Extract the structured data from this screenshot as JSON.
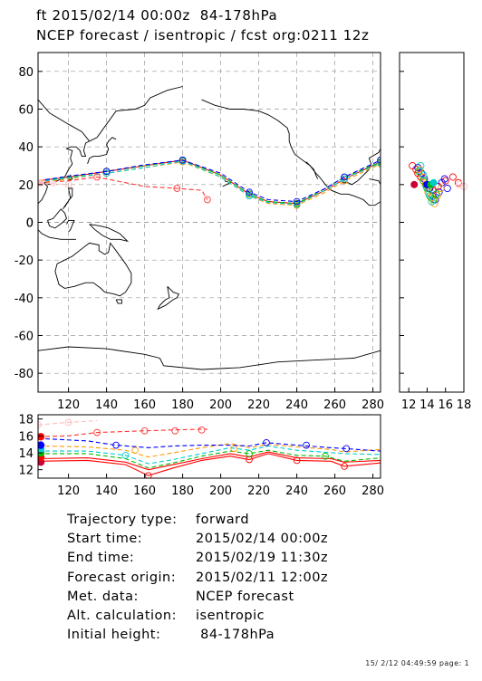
{
  "header": {
    "line1": "ft 2015/02/14 00:00z  84-178hPa",
    "line2": "NCEP forecast / isentropic / fcst org:0211 12z"
  },
  "info": [
    {
      "key": "Trajectory type:",
      "value": "forward"
    },
    {
      "key": "Start time:",
      "value": "2015/02/14 00:00z"
    },
    {
      "key": "End time:",
      "value": "2015/02/19 11:30z"
    },
    {
      "key": "Forecast origin:",
      "value": "2015/02/11 12:00z"
    },
    {
      "key": "Met. data:",
      "value": "NCEP forecast"
    },
    {
      "key": "Alt. calculation:",
      "value": "isentropic"
    },
    {
      "key": "Initial height:",
      "value": " 84-178hPa"
    }
  ],
  "footer": "15/ 2/12 04:49:59 page: 1",
  "chart_data": [
    {
      "type": "line",
      "panel": "map",
      "xlim": [
        104,
        284
      ],
      "ylim": [
        -90,
        90
      ],
      "x_ticks": [
        "120",
        "140",
        "160",
        "180",
        "200",
        "220",
        "240",
        "260",
        "280"
      ],
      "y_ticks": [
        "80",
        "60",
        "40",
        "20",
        "0",
        "-20",
        "-40",
        "-60",
        "-80"
      ],
      "grid": true,
      "series": [
        {
          "color": "#ff0000",
          "style": "solid",
          "points": [
            [
              104,
              22
            ],
            [
              120,
              24
            ],
            [
              140,
              27
            ],
            [
              160,
              30
            ],
            [
              180,
              33
            ],
            [
              200,
              25
            ],
            [
              215,
              15
            ],
            [
              225,
              11
            ],
            [
              240,
              10
            ],
            [
              255,
              17
            ],
            [
              265,
              23
            ],
            [
              284,
              32
            ]
          ]
        },
        {
          "color": "#ff9900",
          "style": "dashed",
          "points": [
            [
              104,
              21
            ],
            [
              120,
              23
            ],
            [
              140,
              26
            ],
            [
              160,
              29
            ],
            [
              180,
              32
            ],
            [
              200,
              24
            ],
            [
              215,
              14
            ],
            [
              225,
              10
            ],
            [
              240,
              9
            ],
            [
              255,
              16
            ],
            [
              265,
              22
            ],
            [
              284,
              31
            ]
          ]
        },
        {
          "color": "#00bb00",
          "style": "dashed",
          "points": [
            [
              104,
              22
            ],
            [
              120,
              24
            ],
            [
              140,
              27
            ],
            [
              160,
              30
            ],
            [
              180,
              33
            ],
            [
              200,
              25
            ],
            [
              215,
              15
            ],
            [
              225,
              11
            ],
            [
              240,
              10
            ],
            [
              255,
              18
            ],
            [
              265,
              24
            ],
            [
              284,
              32
            ]
          ]
        },
        {
          "color": "#00cccc",
          "style": "dashed",
          "points": [
            [
              104,
              21.5
            ],
            [
              120,
              23.5
            ],
            [
              140,
              26
            ],
            [
              160,
              29
            ],
            [
              180,
              32.5
            ],
            [
              200,
              24
            ],
            [
              215,
              14
            ],
            [
              225,
              10.5
            ],
            [
              240,
              9.5
            ],
            [
              255,
              17
            ],
            [
              265,
              23
            ],
            [
              284,
              31.5
            ]
          ]
        },
        {
          "color": "#0000ff",
          "style": "dashed",
          "points": [
            [
              104,
              22
            ],
            [
              120,
              24.5
            ],
            [
              140,
              27
            ],
            [
              160,
              30.5
            ],
            [
              180,
              33
            ],
            [
              200,
              26
            ],
            [
              215,
              16
            ],
            [
              225,
              12
            ],
            [
              240,
              11
            ],
            [
              255,
              18
            ],
            [
              265,
              24
            ],
            [
              284,
              33
            ]
          ]
        },
        {
          "color": "#ff3333",
          "style": "dashed",
          "points": [
            [
              104,
              21
            ],
            [
              120,
              22
            ],
            [
              135,
              24
            ],
            [
              160,
              19
            ],
            [
              177,
              18
            ],
            [
              190,
              17
            ],
            [
              193,
              12
            ]
          ]
        },
        {
          "color": "#ffbbbb",
          "style": "dashed",
          "points": [
            [
              104,
              21
            ],
            [
              112,
              20.5
            ],
            [
              120,
              20
            ]
          ]
        }
      ]
    },
    {
      "type": "scatter",
      "panel": "side",
      "xlim": [
        11,
        18
      ],
      "ylim": [
        -90,
        90
      ],
      "x_ticks": [
        "12",
        "14",
        "16",
        "18"
      ],
      "series": [
        {
          "color": "#ff0000",
          "points": [
            [
              12.4,
              30
            ],
            [
              12.8,
              28
            ],
            [
              13.0,
              26
            ],
            [
              13.3,
              24
            ],
            [
              13.6,
              22
            ],
            [
              13.9,
              20
            ],
            [
              14.2,
              18
            ],
            [
              14.6,
              17
            ],
            [
              15.2,
              19
            ],
            [
              16.0,
              22
            ],
            [
              16.8,
              24
            ],
            [
              17.4,
              21
            ]
          ]
        },
        {
          "color": "#0000ff",
          "points": [
            [
              13.0,
              29
            ],
            [
              13.4,
              26
            ],
            [
              13.7,
              23
            ],
            [
              14.0,
              20
            ],
            [
              14.3,
              18
            ],
            [
              14.6,
              14
            ],
            [
              14.9,
              12
            ],
            [
              15.3,
              16
            ],
            [
              15.6,
              21
            ],
            [
              15.9,
              23
            ],
            [
              16.2,
              18
            ]
          ]
        },
        {
          "color": "#ff9900",
          "points": [
            [
              13.2,
              28
            ],
            [
              13.5,
              24
            ],
            [
              13.8,
              20
            ],
            [
              14.1,
              16
            ],
            [
              14.4,
              13
            ],
            [
              14.8,
              10
            ],
            [
              15.1,
              14
            ],
            [
              15.5,
              18
            ]
          ]
        },
        {
          "color": "#00bb00",
          "points": [
            [
              13.1,
              27
            ],
            [
              13.6,
              22
            ],
            [
              14.0,
              18
            ],
            [
              14.3,
              14
            ],
            [
              14.7,
              12
            ],
            [
              15.0,
              15
            ]
          ]
        },
        {
          "color": "#00cccc",
          "points": [
            [
              13.3,
              30
            ],
            [
              13.6,
              25
            ],
            [
              13.9,
              19
            ],
            [
              14.2,
              15
            ],
            [
              14.5,
              11
            ]
          ]
        },
        {
          "color": "#ffbbbb",
          "points": [
            [
              17.5,
              20
            ],
            [
              18.0,
              19
            ]
          ]
        }
      ]
    },
    {
      "type": "line",
      "panel": "height",
      "xlim": [
        104,
        284
      ],
      "ylim": [
        11,
        18.5
      ],
      "x_ticks": [
        "120",
        "140",
        "160",
        "180",
        "200",
        "220",
        "240",
        "260",
        "280"
      ],
      "y_ticks": [
        "18",
        "16",
        "14",
        "12"
      ],
      "series": [
        {
          "color": "#ff0000",
          "style": "solid",
          "points": [
            [
              104,
              13.0
            ],
            [
              130,
              13.1
            ],
            [
              150,
              12.6
            ],
            [
              162,
              11.3
            ],
            [
              175,
              12.2
            ],
            [
              190,
              13.1
            ],
            [
              205,
              13.6
            ],
            [
              215,
              13.2
            ],
            [
              225,
              13.9
            ],
            [
              240,
              13.1
            ],
            [
              258,
              13.0
            ],
            [
              265,
              12.4
            ],
            [
              284,
              12.8
            ]
          ],
          "markers": [
            [
              162,
              11.3
            ],
            [
              215,
              13.2
            ],
            [
              240,
              13.1
            ],
            [
              265,
              12.4
            ]
          ]
        },
        {
          "color": "#ff0000",
          "style": "solid",
          "points": [
            [
              104,
              13.3
            ],
            [
              130,
              13.4
            ],
            [
              150,
              12.9
            ],
            [
              162,
              12.0
            ],
            [
              175,
              12.6
            ],
            [
              190,
              13.3
            ],
            [
              205,
              13.9
            ],
            [
              215,
              13.5
            ],
            [
              225,
              14.1
            ],
            [
              240,
              13.4
            ],
            [
              258,
              13.3
            ],
            [
              265,
              12.9
            ],
            [
              284,
              13.1
            ]
          ],
          "markers": []
        },
        {
          "color": "#00bb00",
          "style": "dashed",
          "points": [
            [
              104,
              13.9
            ],
            [
              130,
              13.9
            ],
            [
              150,
              13.3
            ],
            [
              162,
              12.2
            ],
            [
              175,
              12.8
            ],
            [
              190,
              13.6
            ],
            [
              205,
              14.2
            ],
            [
              215,
              13.9
            ],
            [
              225,
              14.3
            ],
            [
              240,
              13.7
            ],
            [
              255,
              13.6
            ],
            [
              265,
              13.0
            ],
            [
              284,
              13.4
            ]
          ],
          "markers": [
            [
              215,
              13.9
            ],
            [
              255,
              13.6
            ]
          ]
        },
        {
          "color": "#00cccc",
          "style": "dashed",
          "points": [
            [
              104,
              14.2
            ],
            [
              130,
              14.2
            ],
            [
              150,
              13.7
            ],
            [
              162,
              12.7
            ],
            [
              175,
              13.2
            ],
            [
              190,
              13.9
            ],
            [
              205,
              14.6
            ],
            [
              215,
              14.3
            ],
            [
              225,
              14.8
            ],
            [
              240,
              14.3
            ],
            [
              265,
              13.9
            ],
            [
              284,
              13.8
            ]
          ],
          "markers": [
            [
              150,
              13.7
            ]
          ]
        },
        {
          "color": "#ff9900",
          "style": "dashed",
          "points": [
            [
              104,
              14.8
            ],
            [
              130,
              14.7
            ],
            [
              150,
              14.3
            ],
            [
              162,
              13.5
            ],
            [
              175,
              14.0
            ],
            [
              190,
              14.6
            ],
            [
              205,
              15.1
            ],
            [
              215,
              14.6
            ],
            [
              225,
              15.0
            ],
            [
              240,
              14.7
            ],
            [
              258,
              14.4
            ],
            [
              265,
              14.1
            ],
            [
              284,
              14.4
            ]
          ],
          "markers": [
            [
              155,
              14.3
            ],
            [
              207,
              14.5
            ]
          ]
        },
        {
          "color": "#0000ff",
          "style": "dashed",
          "points": [
            [
              104,
              15.7
            ],
            [
              130,
              15.4
            ],
            [
              145,
              14.9
            ],
            [
              162,
              14.6
            ],
            [
              175,
              14.8
            ],
            [
              190,
              14.9
            ],
            [
              205,
              14.9
            ],
            [
              215,
              14.8
            ],
            [
              224,
              15.2
            ],
            [
              240,
              14.9
            ],
            [
              258,
              14.6
            ],
            [
              265,
              14.5
            ],
            [
              284,
              14.2
            ]
          ],
          "markers": [
            [
              145,
              14.9
            ],
            [
              224,
              15.2
            ],
            [
              245,
              14.9
            ],
            [
              266,
              14.5
            ]
          ]
        },
        {
          "color": "#ff3333",
          "style": "dashed",
          "points": [
            [
              104,
              15.9
            ],
            [
              120,
              16.0
            ],
            [
              135,
              16.4
            ],
            [
              160,
              16.6
            ],
            [
              175,
              16.7
            ],
            [
              190,
              16.8
            ],
            [
              193,
              16.8
            ]
          ],
          "markers": [
            [
              135,
              16.4
            ],
            [
              160,
              16.6
            ],
            [
              176,
              16.6
            ],
            [
              190,
              16.7
            ]
          ]
        },
        {
          "color": "#ffbbbb",
          "style": "dashed",
          "points": [
            [
              104,
              17.3
            ],
            [
              120,
              17.6
            ],
            [
              135,
              17.8
            ]
          ],
          "markers": [
            [
              104,
              17.3
            ],
            [
              120,
              17.6
            ]
          ]
        }
      ],
      "start_markers": [
        {
          "y": 12.9,
          "color": "#cc0033"
        },
        {
          "y": 13.5,
          "color": "#ff0000"
        },
        {
          "y": 14.0,
          "color": "#00bb00"
        },
        {
          "y": 14.4,
          "color": "#00cccc"
        },
        {
          "y": 14.9,
          "color": "#0000ff"
        },
        {
          "y": 15.9,
          "color": "#ff0000"
        }
      ]
    }
  ]
}
